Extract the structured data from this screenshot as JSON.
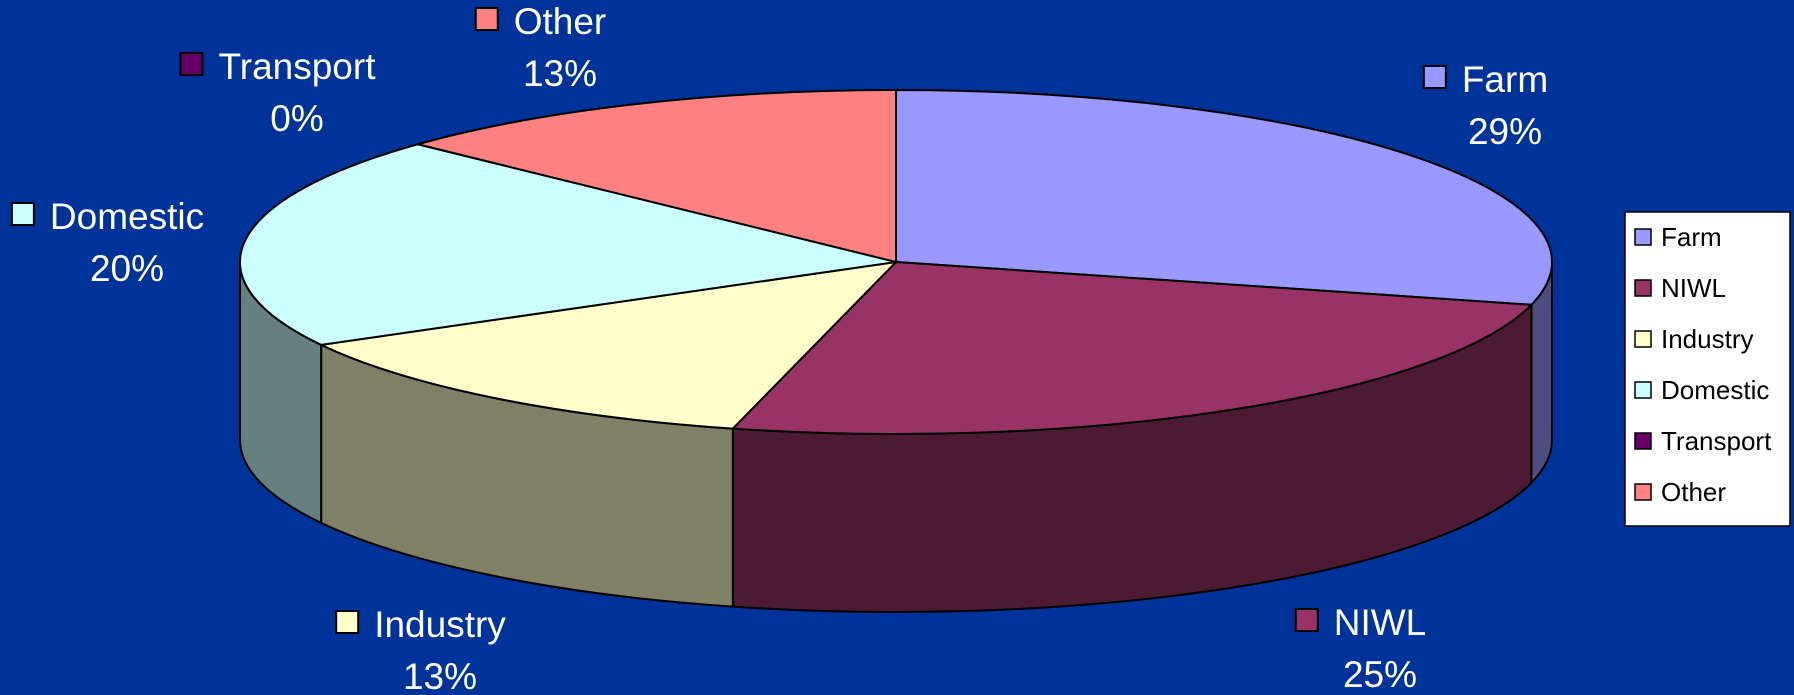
{
  "chart_data": {
    "type": "pie",
    "style": "3d",
    "slices": [
      {
        "label": "Farm",
        "value": 29,
        "percent_label": "29%",
        "color": "#9999ff"
      },
      {
        "label": "NIWL",
        "value": 25,
        "percent_label": "25%",
        "color": "#993366"
      },
      {
        "label": "Industry",
        "value": 13,
        "percent_label": "13%",
        "color": "#ffffcc"
      },
      {
        "label": "Domestic",
        "value": 20,
        "percent_label": "20%",
        "color": "#ccffff"
      },
      {
        "label": "Transport",
        "value": 0,
        "percent_label": "0%",
        "color": "#660066"
      },
      {
        "label": "Other",
        "value": 13,
        "percent_label": "13%",
        "color": "#ff8080"
      }
    ],
    "legend": {
      "position": "right",
      "entries": [
        "Farm",
        "NIWL",
        "Industry",
        "Domestic",
        "Transport",
        "Other"
      ]
    }
  },
  "colors": {
    "background": "#003399",
    "legend_background": "#ffffff",
    "outline": "#000000",
    "label_text": "#ffffff"
  }
}
